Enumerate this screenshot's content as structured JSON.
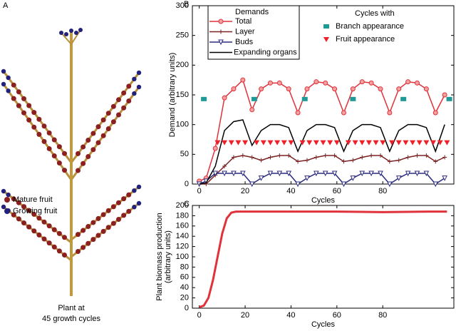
{
  "panel_a": {
    "label": "A",
    "legend": [
      "Mature fruit",
      "Growing fruit"
    ],
    "caption": [
      "Plant at",
      "45 growth cycles"
    ]
  },
  "chart_data": [
    {
      "type": "line",
      "panel_label": "B",
      "xlabel": "Cycles",
      "ylabel": "Demand (arbitrary units)",
      "xlim": [
        -3,
        111
      ],
      "ylim": [
        0,
        300
      ],
      "xticks": [
        0,
        20,
        40,
        60,
        80
      ],
      "yticks": [
        0,
        50,
        100,
        150,
        200,
        250,
        300
      ],
      "legend_title": "Demands",
      "legend2_title": "Cycles with",
      "x": [
        0,
        3,
        7,
        11,
        15,
        19,
        23,
        27,
        31,
        35,
        39,
        43,
        47,
        51,
        55,
        59,
        63,
        67,
        71,
        75,
        79,
        83,
        87,
        91,
        95,
        99,
        103,
        107
      ],
      "series": [
        {
          "name": "Total",
          "color": "#e0323a",
          "marker": "circle",
          "values": [
            5,
            10,
            60,
            145,
            160,
            175,
            125,
            160,
            170,
            170,
            160,
            120,
            160,
            172,
            170,
            160,
            120,
            160,
            172,
            170,
            160,
            120,
            160,
            172,
            170,
            160,
            120,
            150
          ]
        },
        {
          "name": "Layer",
          "color": "#7b2323",
          "marker": "plus",
          "values": [
            0,
            0,
            15,
            30,
            45,
            48,
            45,
            40,
            45,
            48,
            48,
            38,
            40,
            45,
            48,
            48,
            38,
            40,
            45,
            48,
            48,
            38,
            40,
            45,
            48,
            48,
            38,
            45
          ]
        },
        {
          "name": "Buds",
          "color": "#2b2b80",
          "marker": "triangle-down",
          "values": [
            0,
            5,
            18,
            18,
            18,
            18,
            0,
            10,
            18,
            18,
            18,
            0,
            10,
            18,
            18,
            18,
            0,
            10,
            18,
            18,
            18,
            0,
            10,
            18,
            18,
            18,
            0,
            10
          ]
        },
        {
          "name": "Expanding organs",
          "color": "#000000",
          "marker": "none",
          "values": [
            0,
            2,
            30,
            90,
            105,
            108,
            65,
            90,
            100,
            100,
            95,
            55,
            90,
            100,
            100,
            95,
            55,
            90,
            100,
            100,
            95,
            55,
            90,
            100,
            100,
            95,
            55,
            100
          ]
        },
        {
          "name": "Branch appearance",
          "color": "#1f9a96",
          "marker": "square",
          "legend": 2,
          "x": [
            2,
            24,
            46,
            67,
            89,
            109
          ],
          "values": [
            143,
            143,
            143,
            143,
            143,
            143
          ]
        },
        {
          "name": "Fruit appearance",
          "color": "#ee2028",
          "marker": "triangle",
          "legend": 2,
          "x": [
            8,
            11,
            14,
            17,
            20,
            25,
            28,
            31,
            34,
            37,
            40,
            45,
            48,
            51,
            54,
            57,
            60,
            65,
            68,
            71,
            74,
            77,
            80,
            84,
            87,
            90,
            93,
            96,
            99,
            102,
            105,
            108
          ],
          "values": [
            70,
            70,
            70,
            70,
            70,
            70,
            70,
            70,
            70,
            70,
            70,
            70,
            70,
            70,
            70,
            70,
            70,
            70,
            70,
            70,
            70,
            70,
            70,
            70,
            70,
            70,
            70,
            70,
            70,
            70,
            70,
            70
          ]
        }
      ]
    },
    {
      "type": "line",
      "panel_label": "C",
      "xlabel": "Cycles",
      "ylabel": [
        "Plant biomass production",
        "(arbitrary units)"
      ],
      "xlim": [
        -3,
        111
      ],
      "ylim": [
        0,
        200
      ],
      "xticks": [
        0,
        20,
        40,
        60,
        80
      ],
      "yticks": [
        0,
        20,
        40,
        60,
        80,
        100,
        120,
        140,
        160,
        180,
        200
      ],
      "series": [
        {
          "color": "#e0323a",
          "marker": "none",
          "width": 3,
          "x": [
            0,
            2,
            4,
            6,
            8,
            10,
            12,
            14,
            16,
            18,
            20,
            40,
            60,
            80,
            100,
            108
          ],
          "values": [
            2,
            5,
            20,
            55,
            100,
            145,
            175,
            186,
            188,
            188,
            188,
            188,
            188,
            187,
            188,
            188
          ]
        }
      ]
    }
  ]
}
